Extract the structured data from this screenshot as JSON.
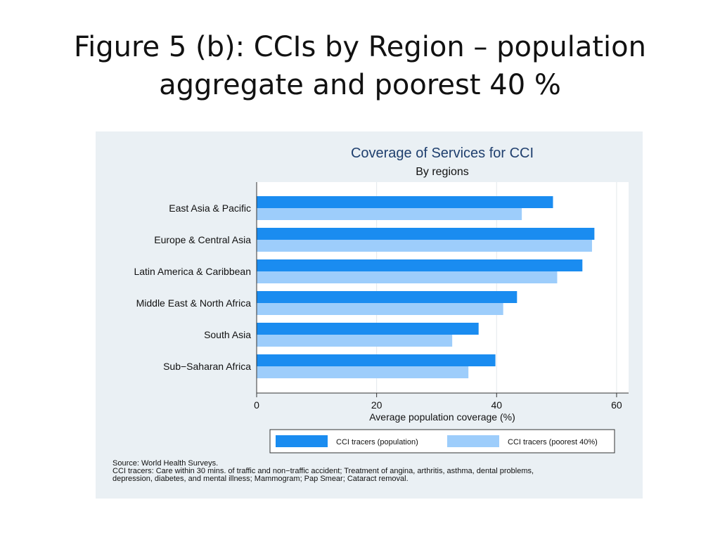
{
  "slide": {
    "title_line1": "Figure 5 (b): CCIs by Region – population",
    "title_line2": "aggregate and poorest 40 %"
  },
  "chart_data": {
    "type": "bar",
    "orientation": "horizontal",
    "title": "Coverage of Services for CCI",
    "subtitle": "By regions",
    "xlabel": "Average population coverage (%)",
    "ylabel": "",
    "categories": [
      "East Asia & Pacific",
      "Europe & Central Asia",
      "Latin America & Caribbean",
      "Middle East & North Africa",
      "South Asia",
      "Sub−Saharan Africa"
    ],
    "series": [
      {
        "name": "CCI tracers (population)",
        "values": [
          49.4,
          56.3,
          54.3,
          43.4,
          37.0,
          39.8
        ],
        "color": "#1a8cf0"
      },
      {
        "name": "CCI tracers (poorest 40%)",
        "values": [
          44.2,
          55.9,
          50.1,
          41.1,
          32.6,
          35.3
        ],
        "color": "#9dcdfb"
      }
    ],
    "xlim": [
      0,
      62
    ],
    "xticks": [
      "0",
      "20",
      "40",
      "60"
    ],
    "grid": true,
    "legend_position": "bottom",
    "notes": [
      "Source: World Health Surveys.",
      "CCI tracers: Care within 30 mins. of traffic and non−traffic accident; Treatment of angina, arthritis, asthma, dental problems,",
      "depression, diabetes, and mental illness; Mammogram; Pap Smear; Cataract removal."
    ]
  }
}
